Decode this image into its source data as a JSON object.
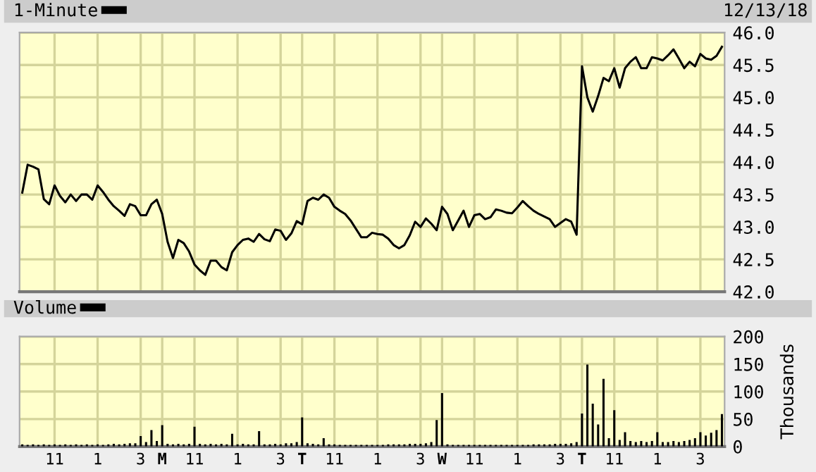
{
  "chart_data": [
    {
      "type": "line",
      "annotations": [
        "12/13/18"
      ],
      "legend": "top left",
      "grid": true,
      "tick_labels": "y",
      "marker": "none",
      "line_style": "solid",
      "categories": [
        null,
        null,
        null,
        null,
        null,
        null,
        null,
        null,
        null,
        null,
        null,
        null,
        null,
        null,
        null,
        null,
        null,
        null,
        null,
        null,
        null,
        null,
        null,
        null,
        null,
        null,
        null,
        null,
        null,
        null,
        null,
        null,
        null,
        null,
        null,
        null,
        null,
        null,
        null,
        null,
        null,
        null,
        null,
        null,
        null,
        null,
        null,
        null,
        null,
        null,
        null,
        null,
        null,
        null,
        null,
        null,
        null,
        null,
        null,
        null,
        null,
        null,
        null,
        null,
        null,
        null,
        null,
        null,
        null,
        null,
        null,
        null,
        null,
        null,
        null,
        null,
        null,
        null,
        null,
        null,
        null,
        null,
        null,
        null,
        null,
        null,
        null,
        null,
        null,
        null,
        null,
        null,
        null,
        null,
        null,
        null,
        null,
        null,
        null,
        null,
        null,
        null,
        null,
        null,
        null,
        null,
        null,
        null,
        null,
        null,
        null,
        null,
        null,
        null,
        null,
        null,
        null,
        null,
        null,
        null,
        null,
        null,
        null,
        null,
        null,
        null,
        null,
        null,
        null,
        null,
        null
      ],
      "ylim": [
        42.0,
        46.0
      ],
      "yticks": [
        {
          "value": 42,
          "label": "42.0"
        },
        {
          "value": 42.5,
          "label": "42.5"
        },
        {
          "value": 43,
          "label": "43.0"
        },
        {
          "value": 43.5,
          "label": "43.5"
        },
        {
          "value": 44,
          "label": "44.0"
        },
        {
          "value": 44.5,
          "label": "44.5"
        },
        {
          "value": 45,
          "label": "45.0"
        },
        {
          "value": 45.5,
          "label": "45.5"
        },
        {
          "value": 46,
          "label": "46.0"
        }
      ],
      "series": [
        {
          "name": "1-Minute",
          "color": "#000000",
          "values": [
            43.53,
            43.96,
            43.93,
            43.89,
            43.43,
            43.35,
            43.64,
            43.48,
            43.38,
            43.5,
            43.4,
            43.5,
            43.5,
            43.42,
            43.64,
            43.54,
            43.42,
            43.32,
            43.25,
            43.17,
            43.35,
            43.32,
            43.18,
            43.18,
            43.35,
            43.42,
            43.2,
            42.77,
            42.52,
            42.8,
            42.75,
            42.62,
            42.42,
            42.33,
            42.26,
            42.48,
            42.48,
            42.38,
            42.33,
            42.61,
            42.72,
            42.8,
            42.82,
            42.77,
            42.89,
            42.81,
            42.78,
            42.96,
            42.94,
            42.8,
            42.9,
            43.09,
            43.04,
            43.4,
            43.45,
            43.42,
            43.5,
            43.45,
            43.31,
            43.25,
            43.2,
            43.1,
            42.97,
            42.84,
            42.84,
            42.91,
            42.89,
            42.88,
            42.82,
            42.72,
            42.67,
            42.72,
            42.87,
            43.08,
            43.0,
            43.13,
            43.05,
            42.95,
            43.31,
            43.2,
            42.95,
            43.1,
            43.25,
            43.0,
            43.18,
            43.2,
            43.12,
            43.15,
            43.27,
            43.25,
            43.22,
            43.21,
            43.3,
            43.4,
            43.32,
            43.25,
            43.2,
            43.16,
            43.12,
            43.0,
            43.06,
            43.12,
            43.08,
            42.88,
            45.48,
            45.0,
            44.78,
            45.02,
            45.3,
            45.25,
            45.45,
            45.15,
            45.45,
            45.55,
            45.62,
            45.45,
            45.45,
            45.62,
            45.6,
            45.57,
            45.65,
            45.74,
            45.6,
            45.45,
            45.55,
            45.48,
            45.67,
            45.6,
            45.58,
            45.64,
            45.78
          ]
        }
      ]
    },
    {
      "type": "bar",
      "ylabel": "Thousands",
      "legend": "top left",
      "grid": true,
      "categories": [
        null,
        null,
        null,
        null,
        null,
        null,
        "11",
        null,
        null,
        null,
        null,
        null,
        null,
        null,
        "1",
        null,
        null,
        null,
        null,
        null,
        null,
        null,
        "3",
        null,
        null,
        null,
        "M",
        null,
        null,
        null,
        null,
        null,
        "11",
        null,
        null,
        null,
        null,
        null,
        null,
        null,
        "1",
        null,
        null,
        null,
        null,
        null,
        null,
        null,
        "3",
        null,
        null,
        null,
        "T",
        null,
        null,
        null,
        null,
        null,
        "11",
        null,
        null,
        null,
        null,
        null,
        null,
        null,
        "1",
        null,
        null,
        null,
        null,
        null,
        null,
        null,
        "3",
        null,
        null,
        null,
        "W",
        null,
        null,
        null,
        null,
        null,
        "11",
        null,
        null,
        null,
        null,
        null,
        null,
        null,
        "1",
        null,
        null,
        null,
        null,
        null,
        null,
        null,
        "3",
        null,
        null,
        null,
        "T",
        null,
        null,
        null,
        null,
        null,
        "11",
        null,
        null,
        null,
        null,
        null,
        null,
        null,
        "1",
        null,
        null,
        null,
        null,
        null,
        null,
        null,
        "3",
        null,
        null,
        null,
        null
      ],
      "ylim": [
        0,
        200
      ],
      "yticks": [
        0,
        50,
        100,
        150,
        200
      ],
      "series": [
        {
          "name": "Volume",
          "color": "#000000",
          "values": [
            4,
            3,
            4,
            3,
            4,
            3,
            4,
            3,
            4,
            3,
            4,
            3,
            4,
            3,
            4,
            3,
            4,
            5,
            4,
            5,
            6,
            6,
            19,
            8,
            30,
            10,
            39,
            5,
            4,
            5,
            4,
            5,
            36,
            5,
            4,
            5,
            4,
            5,
            4,
            23,
            4,
            5,
            4,
            4,
            28,
            4,
            4,
            5,
            4,
            6,
            6,
            8,
            53,
            6,
            5,
            4,
            15,
            4,
            4,
            3,
            3,
            3,
            3,
            3,
            3,
            3,
            3,
            3,
            4,
            4,
            4,
            4,
            5,
            5,
            5,
            6,
            8,
            48,
            97,
            4,
            3,
            3,
            3,
            3,
            3,
            3,
            3,
            3,
            3,
            3,
            3,
            3,
            3,
            3,
            3,
            4,
            4,
            4,
            4,
            5,
            5,
            5,
            6,
            8,
            60,
            149,
            78,
            40,
            123,
            15,
            66,
            12,
            26,
            10,
            8,
            10,
            8,
            10,
            26,
            8,
            8,
            10,
            8,
            10,
            12,
            15,
            26,
            20,
            25,
            30,
            59
          ]
        }
      ]
    }
  ]
}
